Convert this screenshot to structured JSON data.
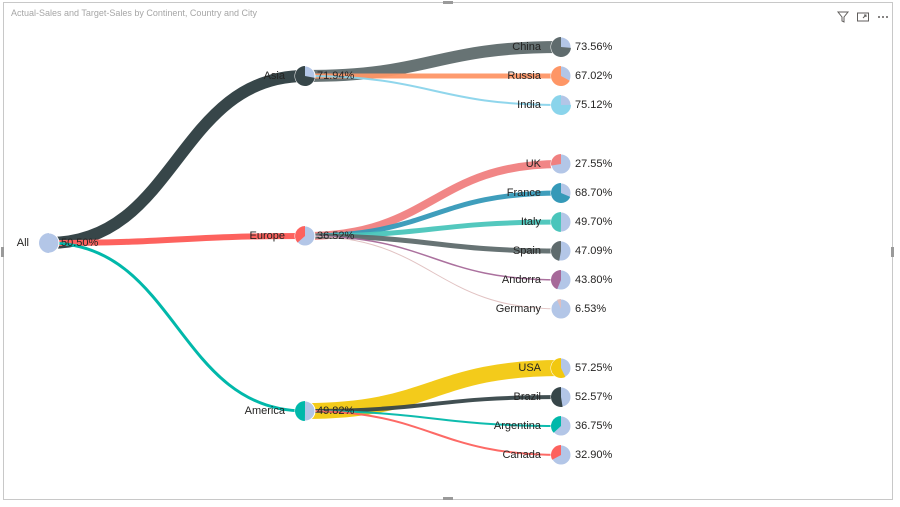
{
  "visual": {
    "title": "Actual-Sales and Target-Sales by Continent, Country and City",
    "icons": [
      "filter-icon",
      "focus-mode-icon",
      "more-options-icon"
    ]
  },
  "chart_data": {
    "type": "sankey-tree",
    "title": "Actual-Sales and Target-Sales by Continent, Country and City",
    "root": {
      "name": "All",
      "percent": "50.50%",
      "value": 0.505,
      "color": "#b3c6e7"
    },
    "continents": [
      {
        "name": "Asia",
        "percent": "71.94%",
        "value": 0.7194,
        "color": "#374649",
        "children": [
          {
            "name": "China",
            "percent": "73.56%",
            "value": 0.7356,
            "color": "#5f6b6d"
          },
          {
            "name": "Russia",
            "percent": "67.02%",
            "value": 0.6702,
            "color": "#fe9666"
          },
          {
            "name": "India",
            "percent": "75.12%",
            "value": 0.7512,
            "color": "#8ad4eb"
          }
        ]
      },
      {
        "name": "Europe",
        "percent": "36.52%",
        "value": 0.3652,
        "color": "#fd625e",
        "children": [
          {
            "name": "UK",
            "percent": "27.55%",
            "value": 0.2755,
            "color": "#f08080"
          },
          {
            "name": "France",
            "percent": "68.70%",
            "value": 0.687,
            "color": "#3599b8"
          },
          {
            "name": "Italy",
            "percent": "49.70%",
            "value": 0.497,
            "color": "#4ac5bb"
          },
          {
            "name": "Spain",
            "percent": "47.09%",
            "value": 0.4709,
            "color": "#5f6b6d"
          },
          {
            "name": "Andorra",
            "percent": "43.80%",
            "value": 0.438,
            "color": "#a66999"
          },
          {
            "name": "Germany",
            "percent": "6.53%",
            "value": 0.0653,
            "color": "#dfbfbf"
          }
        ]
      },
      {
        "name": "America",
        "percent": "49.82%",
        "value": 0.4982,
        "color": "#01b8aa",
        "children": [
          {
            "name": "USA",
            "percent": "57.25%",
            "value": 0.5725,
            "color": "#f2c80f"
          },
          {
            "name": "Brazil",
            "percent": "52.57%",
            "value": 0.5257,
            "color": "#374649"
          },
          {
            "name": "Argentina",
            "percent": "36.75%",
            "value": 0.3675,
            "color": "#01b8aa"
          },
          {
            "name": "Canada",
            "percent": "32.90%",
            "value": 0.329,
            "color": "#fd625e"
          }
        ]
      }
    ],
    "pie_background_color": "#b3c6e7"
  }
}
